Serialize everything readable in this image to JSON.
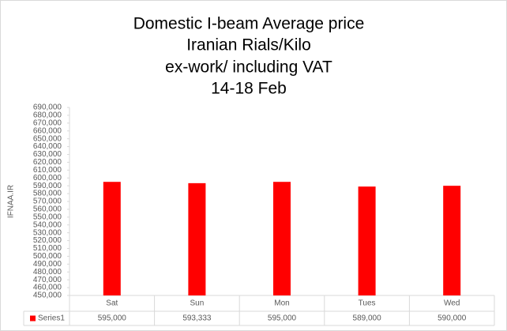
{
  "chart_data": {
    "type": "bar",
    "title": [
      "Domestic I-beam Average price",
      "Iranian Rials/Kilo",
      "ex-work/ including VAT",
      "14-18 Feb"
    ],
    "y_label": "IFNAA.IR",
    "categories": [
      "Sat",
      "Sun",
      "Mon",
      "Tues",
      "Wed"
    ],
    "series": [
      {
        "name": "Series1",
        "color": "#ff0000",
        "values": [
          595000,
          593333,
          595000,
          589000,
          590000
        ],
        "value_labels": [
          "595,000",
          "593,333",
          "595,000",
          "589,000",
          "590,000"
        ]
      }
    ],
    "ylim": [
      450000,
      690000
    ],
    "yticks": [
      {
        "value": 450000,
        "label": "450,000"
      },
      {
        "value": 460000,
        "label": "460,000"
      },
      {
        "value": 470000,
        "label": "470,000"
      },
      {
        "value": 480000,
        "label": "480,000"
      },
      {
        "value": 490000,
        "label": "490,000"
      },
      {
        "value": 500000,
        "label": "500,000"
      },
      {
        "value": 510000,
        "label": "510,000"
      },
      {
        "value": 520000,
        "label": "520,000"
      },
      {
        "value": 530000,
        "label": "530,000"
      },
      {
        "value": 540000,
        "label": "540,000"
      },
      {
        "value": 550000,
        "label": "550,000"
      },
      {
        "value": 560000,
        "label": "560,000"
      },
      {
        "value": 570000,
        "label": "570,000"
      },
      {
        "value": 580000,
        "label": "580,000"
      },
      {
        "value": 590000,
        "label": "590,000"
      },
      {
        "value": 600000,
        "label": "600,000"
      },
      {
        "value": 610000,
        "label": "610,000"
      },
      {
        "value": 620000,
        "label": "620,000"
      },
      {
        "value": 630000,
        "label": "630,000"
      },
      {
        "value": 640000,
        "label": "640,000"
      },
      {
        "value": 650000,
        "label": "650,000"
      },
      {
        "value": 660000,
        "label": "660,000"
      },
      {
        "value": 670000,
        "label": "670,000"
      },
      {
        "value": 680000,
        "label": "680,000"
      },
      {
        "value": 690000,
        "label": "690,000"
      }
    ],
    "grid": false
  }
}
